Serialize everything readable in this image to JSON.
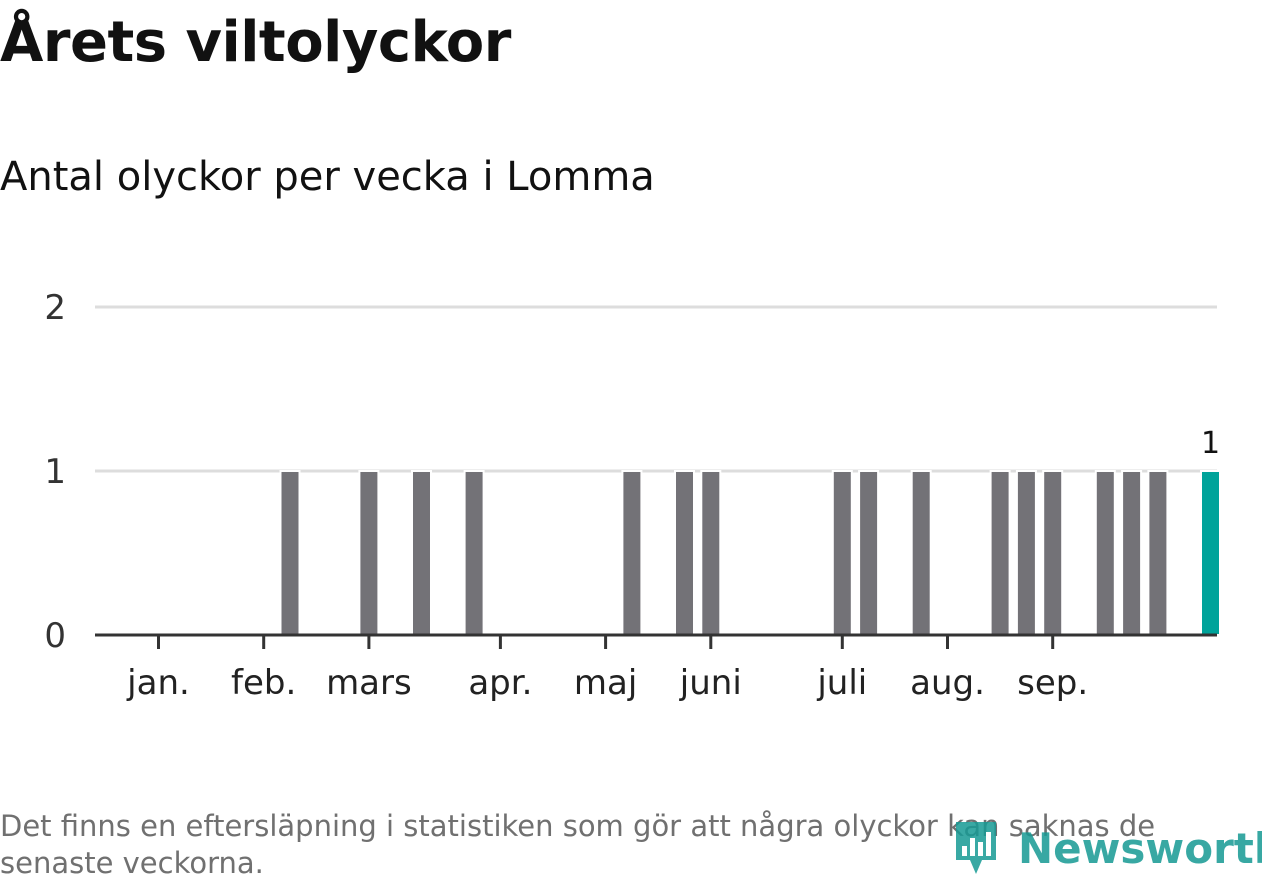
{
  "header": {
    "title": "Årets viltolyckor",
    "subtitle": "Antal olyckor per vecka i Lomma"
  },
  "footer": {
    "note": "Det finns en eftersläpning i statistiken som gör att några olyckor kan saknas de senaste veckorna.",
    "brand": "Newsworthy",
    "brand_icon": "bar-chart-pin-icon"
  },
  "colors": {
    "bar": "#737277",
    "highlight": "#00a39a",
    "grid": "#dddddd",
    "axis": "#333333"
  },
  "chart_data": {
    "type": "bar",
    "title": "",
    "xlabel": "",
    "ylabel": "",
    "ylim": [
      0,
      2
    ],
    "yticks": [
      0,
      1,
      2
    ],
    "grid": true,
    "weeks": [
      1,
      2,
      3,
      4,
      5,
      6,
      7,
      8,
      9,
      10,
      11,
      12,
      13,
      14,
      15,
      16,
      17,
      18,
      19,
      20,
      21,
      22,
      23,
      24,
      25,
      26,
      27,
      28,
      29,
      30,
      31,
      32,
      33,
      34,
      35,
      36,
      37,
      38,
      39,
      40,
      41
    ],
    "values": [
      0,
      0,
      0,
      0,
      0,
      1,
      0,
      0,
      1,
      0,
      1,
      0,
      1,
      0,
      0,
      0,
      0,
      0,
      1,
      0,
      1,
      1,
      0,
      0,
      0,
      0,
      1,
      1,
      0,
      1,
      0,
      0,
      1,
      1,
      1,
      0,
      1,
      1,
      1,
      0,
      1
    ],
    "highlight_week": 41,
    "highlight_label": "1",
    "months": [
      {
        "label": "jan.",
        "week": 1.0
      },
      {
        "label": "feb.",
        "week": 5.0
      },
      {
        "label": "mars",
        "week": 9.0
      },
      {
        "label": "apr.",
        "week": 14.0
      },
      {
        "label": "maj",
        "week": 18.0
      },
      {
        "label": "juni",
        "week": 22.0
      },
      {
        "label": "juli",
        "week": 27.0
      },
      {
        "label": "aug.",
        "week": 31.0
      },
      {
        "label": "sep.",
        "week": 35.0
      }
    ]
  }
}
